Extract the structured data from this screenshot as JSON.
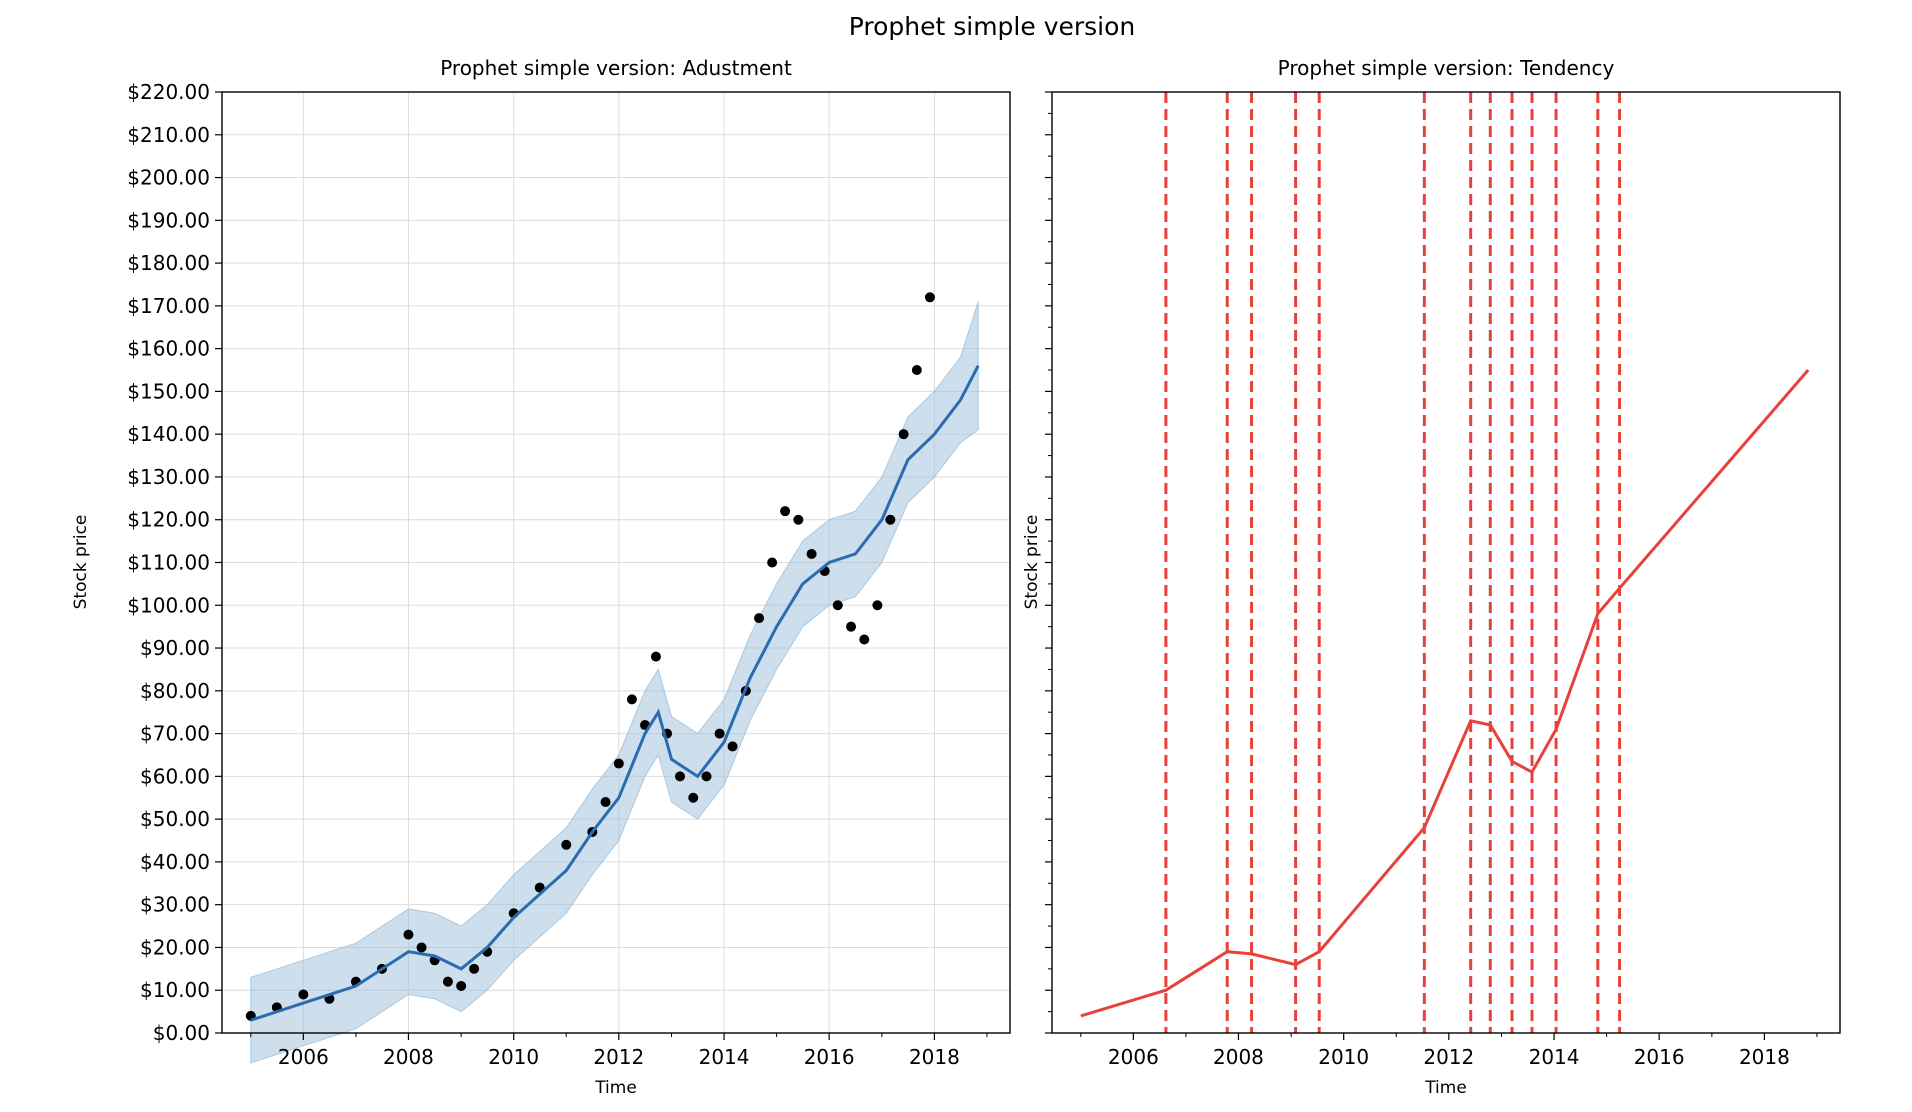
{
  "figure": {
    "title": "Prophet simple version"
  },
  "colors": {
    "fit_line": "#2b6cb0",
    "band_fill": "#9bbfdc",
    "observed_points": "#000000",
    "trend_line": "#e8403a",
    "changepoint_line": "#e8403a",
    "grid": "#dcdcdc"
  },
  "chart_data": [
    {
      "type": "scatter",
      "title": "Prophet simple version: Adustment",
      "xlabel": "Time",
      "ylabel": "Stock price",
      "xlim": [
        "2004-06-15",
        "2019-06-10"
      ],
      "ylim": [
        0,
        220
      ],
      "grid": true,
      "xticks": [
        "2006",
        "2008",
        "2010",
        "2012",
        "2014",
        "2016",
        "2018"
      ],
      "yticks": [
        "$0.00",
        "$10.00",
        "$20.00",
        "$30.00",
        "$40.00",
        "$50.00",
        "$60.00",
        "$70.00",
        "$80.00",
        "$90.00",
        "$100.00",
        "$110.00",
        "$120.00",
        "$130.00",
        "$140.00",
        "$150.00",
        "$160.00",
        "$170.00",
        "$180.00",
        "$190.00",
        "$200.00",
        "$210.00",
        "$220.00"
      ],
      "series": [
        {
          "kind": "observed",
          "x": [
            "2005-01-01",
            "2005-07-01",
            "2006-01-01",
            "2006-07-01",
            "2007-01-01",
            "2007-07-01",
            "2008-01-01",
            "2008-04-01",
            "2008-07-01",
            "2008-10-01",
            "2009-01-01",
            "2009-04-01",
            "2009-07-01",
            "2010-01-01",
            "2010-07-01",
            "2011-01-01",
            "2011-07-01",
            "2011-10-01",
            "2012-01-01",
            "2012-04-01",
            "2012-07-01",
            "2012-09-15",
            "2012-12-01",
            "2013-03-01",
            "2013-06-01",
            "2013-09-01",
            "2013-12-01",
            "2014-03-01",
            "2014-06-01",
            "2014-09-01",
            "2014-12-01",
            "2015-03-01",
            "2015-06-01",
            "2015-09-01",
            "2015-12-01",
            "2016-03-01",
            "2016-06-01",
            "2016-09-01",
            "2016-12-01",
            "2017-03-01",
            "2017-06-01",
            "2017-09-01",
            "2017-12-01"
          ],
          "y": [
            4,
            6,
            9,
            8,
            12,
            15,
            23,
            20,
            17,
            12,
            11,
            15,
            19,
            28,
            34,
            44,
            47,
            54,
            63,
            78,
            72,
            88,
            70,
            60,
            55,
            60,
            70,
            67,
            80,
            97,
            110,
            122,
            120,
            112,
            108,
            100,
            95,
            92,
            100,
            120,
            140,
            155,
            172
          ]
        },
        {
          "kind": "fitted",
          "x": [
            "2005-01-01",
            "2006-01-01",
            "2007-01-01",
            "2008-01-01",
            "2008-07-01",
            "2009-01-01",
            "2009-07-01",
            "2010-01-01",
            "2011-01-01",
            "2011-07-01",
            "2012-01-01",
            "2012-07-01",
            "2012-10-01",
            "2013-01-01",
            "2013-07-01",
            "2014-01-01",
            "2014-07-01",
            "2015-01-01",
            "2015-07-01",
            "2016-01-01",
            "2016-07-01",
            "2017-01-01",
            "2017-07-01",
            "2018-01-01",
            "2018-07-01",
            "2018-11-01"
          ],
          "y": [
            3,
            7,
            11,
            19,
            18,
            15,
            20,
            27,
            38,
            47,
            55,
            70,
            75,
            64,
            60,
            68,
            83,
            95,
            105,
            110,
            112,
            120,
            134,
            140,
            148,
            156
          ],
          "lower": [
            -7,
            -3,
            1,
            9,
            8,
            5,
            10,
            17,
            28,
            37,
            45,
            60,
            65,
            54,
            50,
            58,
            73,
            85,
            95,
            100,
            102,
            110,
            124,
            130,
            138,
            141
          ],
          "upper": [
            13,
            17,
            21,
            29,
            28,
            25,
            30,
            37,
            48,
            57,
            65,
            80,
            85,
            74,
            70,
            78,
            93,
            105,
            115,
            120,
            122,
            130,
            144,
            150,
            158,
            171
          ]
        }
      ]
    },
    {
      "type": "line",
      "title": "Prophet simple version: Tendency",
      "xlabel": "Time",
      "ylabel": "Stock price",
      "xlim": [
        "2004-06-15",
        "2019-06-10"
      ],
      "ylim": [
        0,
        220
      ],
      "grid": false,
      "xticks": [
        "2006",
        "2008",
        "2010",
        "2012",
        "2014",
        "2016",
        "2018"
      ],
      "series": [
        {
          "kind": "trend",
          "x": [
            "2005-01-01",
            "2006-08-15",
            "2007-10-15",
            "2008-04-01",
            "2009-02-01",
            "2009-07-15",
            "2011-07-15",
            "2012-06-01",
            "2012-10-15",
            "2013-03-15",
            "2013-08-01",
            "2014-01-15",
            "2014-11-01",
            "2015-04-01",
            "2018-11-01"
          ],
          "y": [
            4,
            10,
            19,
            18.5,
            16,
            19,
            48,
            73,
            72,
            63.5,
            61,
            71,
            98,
            104,
            155
          ]
        }
      ],
      "changepoints": [
        "2006-08-15",
        "2007-10-15",
        "2008-04-01",
        "2009-02-01",
        "2009-07-15",
        "2011-07-15",
        "2012-06-01",
        "2012-10-15",
        "2013-03-15",
        "2013-08-01",
        "2014-01-15",
        "2014-11-01",
        "2015-04-01"
      ]
    }
  ]
}
